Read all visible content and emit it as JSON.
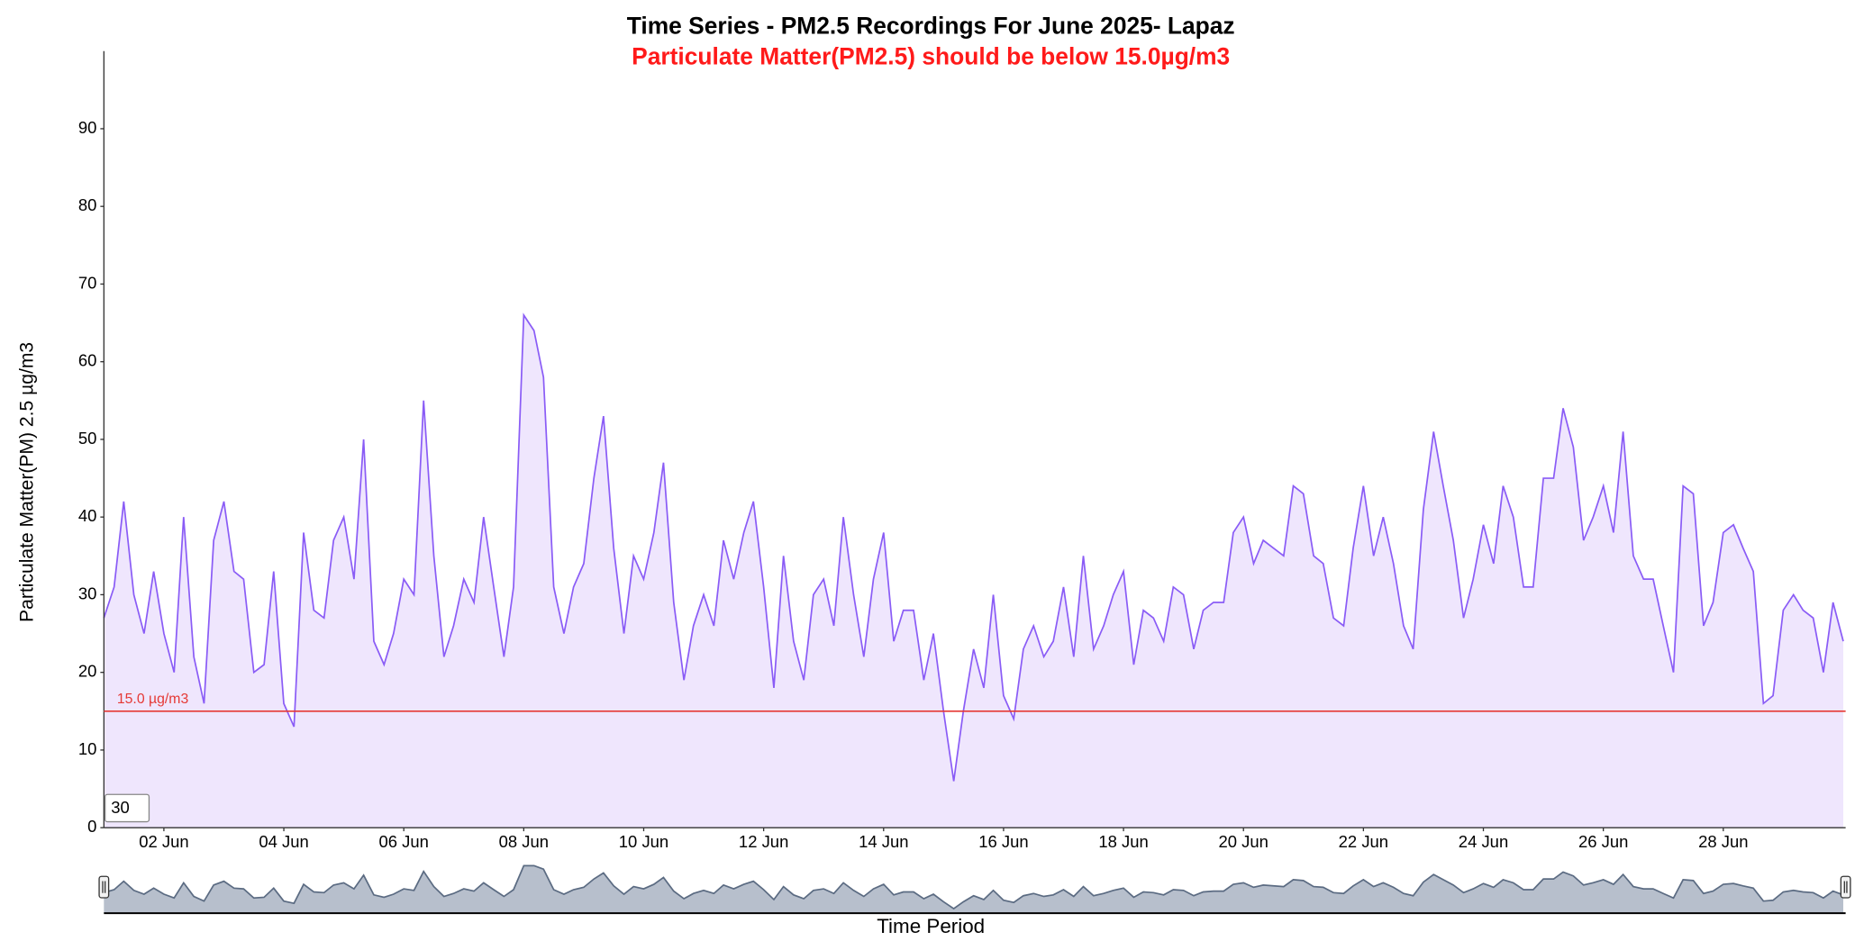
{
  "chart_data": {
    "type": "area",
    "title": "Time Series - PM2.5 Recordings For June 2025- Lapaz",
    "subtitle": "Particulate Matter(PM2.5) should be below 15.0µg/m3",
    "y_label": "Particulate Matter(PM) 2.5 µg/m3",
    "x_label": "Time Period",
    "range_input": "30",
    "threshold": 15,
    "threshold_label": "15.0 µg/m3",
    "threshold_color": "#e53935",
    "xlim": [
      1,
      30.04
    ],
    "ylim": [
      0,
      100
    ],
    "yticks": [
      0,
      10,
      20,
      30,
      40,
      50,
      60,
      70,
      80,
      90
    ],
    "xticks": [
      {
        "value": 2,
        "label": "02 Jun"
      },
      {
        "value": 4,
        "label": "04 Jun"
      },
      {
        "value": 6,
        "label": "06 Jun"
      },
      {
        "value": 8,
        "label": "08 Jun"
      },
      {
        "value": 10,
        "label": "10 Jun"
      },
      {
        "value": 12,
        "label": "12 Jun"
      },
      {
        "value": 14,
        "label": "14 Jun"
      },
      {
        "value": 16,
        "label": "16 Jun"
      },
      {
        "value": 18,
        "label": "18 Jun"
      },
      {
        "value": 20,
        "label": "20 Jun"
      },
      {
        "value": 22,
        "label": "22 Jun"
      },
      {
        "value": 24,
        "label": "24 Jun"
      },
      {
        "value": 26,
        "label": "26 Jun"
      },
      {
        "value": 28,
        "label": "28 Jun"
      }
    ],
    "grid": false,
    "series": [
      {
        "name": "PM2.5",
        "color": "#8a5cf6",
        "fill": "#efe6fd",
        "x": [
          1,
          1.17,
          1.33,
          1.5,
          1.67,
          1.83,
          2,
          2.17,
          2.33,
          2.5,
          2.67,
          2.83,
          3,
          3.17,
          3.33,
          3.5,
          3.67,
          3.83,
          4,
          4.17,
          4.33,
          4.5,
          4.67,
          4.83,
          5,
          5.17,
          5.33,
          5.5,
          5.67,
          5.83,
          6,
          6.17,
          6.33,
          6.5,
          6.67,
          6.83,
          7,
          7.17,
          7.33,
          7.5,
          7.67,
          7.83,
          8,
          8.17,
          8.33,
          8.5,
          8.67,
          8.83,
          9,
          9.17,
          9.33,
          9.5,
          9.67,
          9.83,
          10,
          10.17,
          10.33,
          10.5,
          10.67,
          10.83,
          11,
          11.17,
          11.33,
          11.5,
          11.67,
          11.83,
          12,
          12.17,
          12.33,
          12.5,
          12.67,
          12.83,
          13,
          13.17,
          13.33,
          13.5,
          13.67,
          13.83,
          14,
          14.17,
          14.33,
          14.5,
          14.67,
          14.83,
          15,
          15.17,
          15.33,
          15.5,
          15.67,
          15.83,
          16,
          16.17,
          16.33,
          16.5,
          16.67,
          16.83,
          17,
          17.17,
          17.33,
          17.5,
          17.67,
          17.83,
          18,
          18.17,
          18.33,
          18.5,
          18.67,
          18.83,
          19,
          19.17,
          19.33,
          19.5,
          19.67,
          19.83,
          20,
          20.17,
          20.33,
          20.5,
          20.67,
          20.83,
          21,
          21.17,
          21.33,
          21.5,
          21.67,
          21.83,
          22,
          22.17,
          22.33,
          22.5,
          22.67,
          22.83,
          23,
          23.17,
          23.33,
          23.5,
          23.67,
          23.83,
          24,
          24.17,
          24.33,
          24.5,
          24.67,
          24.83,
          25,
          25.17,
          25.33,
          25.5,
          25.67,
          25.83,
          26,
          26.17,
          26.33,
          26.5,
          26.67,
          26.83,
          27,
          27.17,
          27.33,
          27.5,
          27.67,
          27.83,
          28,
          28.17,
          28.33,
          28.5,
          28.67,
          28.83,
          29,
          29.17,
          29.33,
          29.5,
          29.67,
          29.83,
          30
        ],
        "values": [
          27,
          31,
          42,
          30,
          25,
          33,
          25,
          20,
          40,
          22,
          16,
          37,
          42,
          33,
          32,
          20,
          21,
          33,
          16,
          13,
          38,
          28,
          27,
          37,
          40,
          32,
          50,
          24,
          21,
          25,
          32,
          30,
          55,
          35,
          22,
          26,
          32,
          29,
          40,
          31,
          22,
          31,
          66,
          64,
          58,
          31,
          25,
          31,
          34,
          45,
          53,
          36,
          25,
          35,
          32,
          38,
          47,
          29,
          19,
          26,
          30,
          26,
          37,
          32,
          38,
          42,
          31,
          18,
          35,
          24,
          19,
          30,
          32,
          26,
          40,
          30,
          22,
          32,
          38,
          24,
          28,
          28,
          19,
          25,
          15,
          6,
          15,
          23,
          18,
          30,
          17,
          14,
          23,
          26,
          22,
          24,
          31,
          22,
          35,
          23,
          26,
          30,
          33,
          21,
          28,
          27,
          24,
          31,
          30,
          23,
          28,
          29,
          29,
          38,
          40,
          34,
          37,
          36,
          35,
          44,
          43,
          35,
          34,
          27,
          26,
          36,
          44,
          35,
          40,
          34,
          26,
          23,
          41,
          51,
          44,
          37,
          27,
          32,
          39,
          34,
          44,
          40,
          31,
          31,
          45,
          45,
          54,
          49,
          37,
          40,
          44,
          38,
          51,
          35,
          32,
          32,
          26,
          20,
          44,
          43,
          26,
          29,
          38,
          39,
          36,
          33,
          16,
          17,
          28,
          30,
          28,
          27,
          20,
          29,
          24
        ]
      }
    ]
  }
}
